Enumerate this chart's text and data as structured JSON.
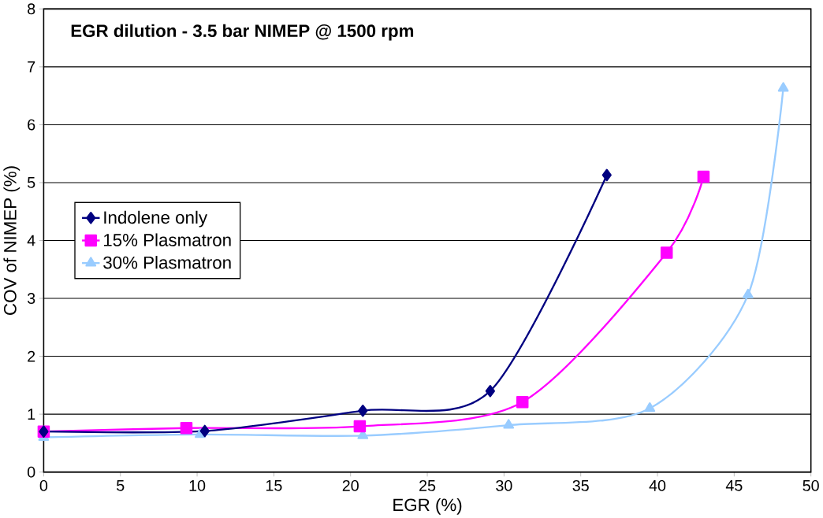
{
  "chart_data": {
    "type": "line",
    "title": "EGR dilution - 3.5 bar NIMEP @ 1500 rpm",
    "xlabel": "EGR (%)",
    "ylabel": "COV of NIMEP (%)",
    "xlim": [
      0,
      50
    ],
    "xticks": [
      0,
      5,
      10,
      15,
      20,
      25,
      30,
      35,
      40,
      45,
      50
    ],
    "ylim": [
      0,
      8
    ],
    "yticks": [
      0,
      1,
      2,
      3,
      4,
      5,
      6,
      7,
      8
    ],
    "grid": "y",
    "legend": "left",
    "series": [
      {
        "name": "Indolene only",
        "color": "#000080",
        "marker": "diamond",
        "x": [
          0,
          10.5,
          20.8,
          29.1,
          36.7
        ],
        "values": [
          0.7,
          0.71,
          1.06,
          1.4,
          5.13
        ]
      },
      {
        "name": "15% Plasmatron",
        "color": "#ff00ff",
        "marker": "square",
        "x": [
          0,
          9.3,
          20.6,
          31.2,
          40.6,
          43
        ],
        "values": [
          0.7,
          0.76,
          0.79,
          1.21,
          3.79,
          5.1
        ]
      },
      {
        "name": "30% Plasmatron",
        "color": "#99ccff",
        "marker": "triangle",
        "x": [
          0,
          10.2,
          20.8,
          30.3,
          39.5,
          45.9,
          48.2
        ],
        "values": [
          0.6,
          0.65,
          0.63,
          0.81,
          1.1,
          3.06,
          6.63
        ]
      }
    ]
  }
}
